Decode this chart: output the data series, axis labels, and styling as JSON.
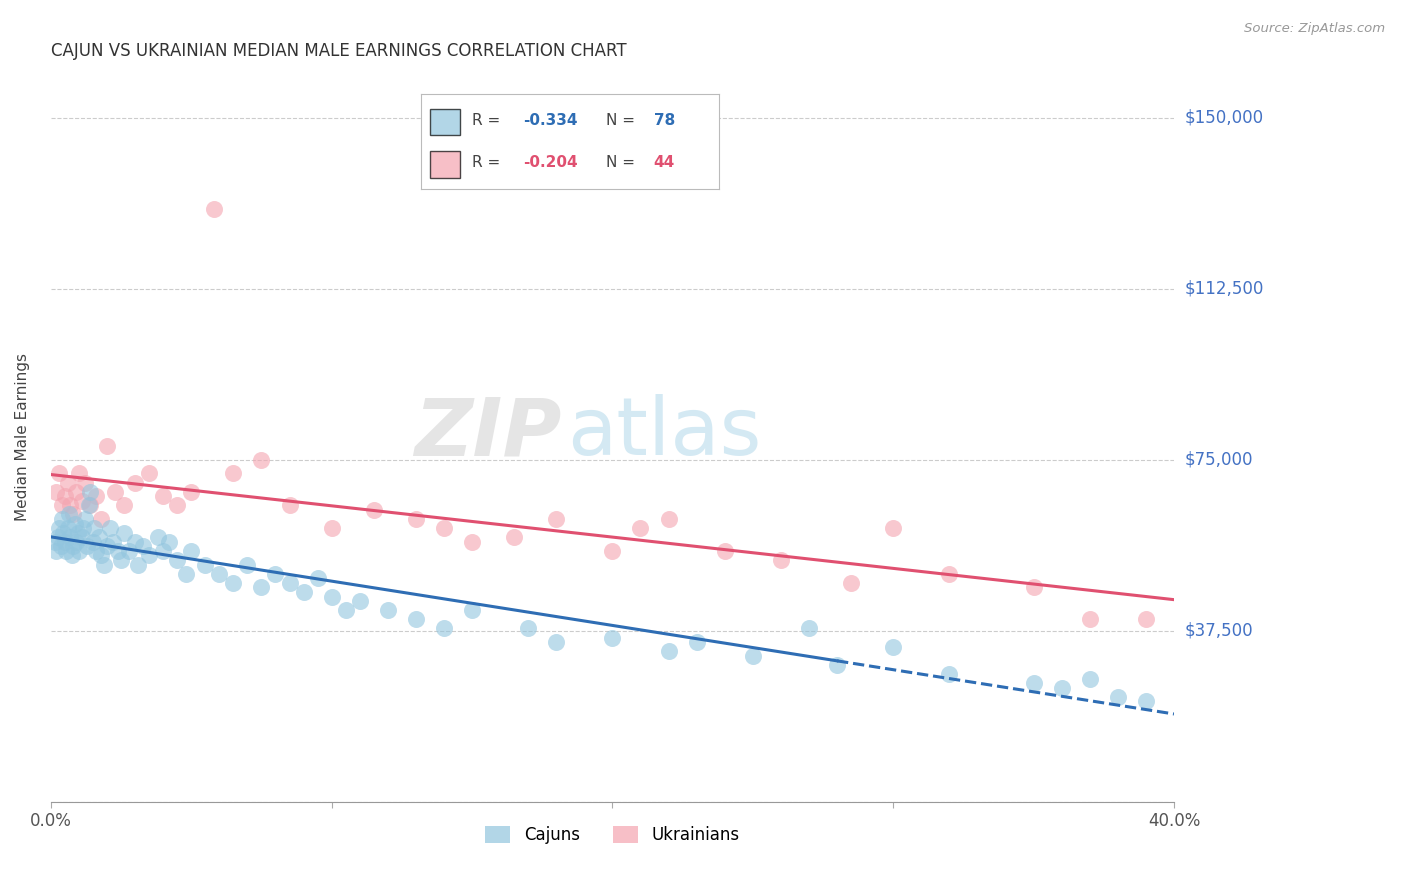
{
  "title": "CAJUN VS UKRAINIAN MEDIAN MALE EARNINGS CORRELATION CHART",
  "source": "Source: ZipAtlas.com",
  "ylabel": "Median Male Earnings",
  "yticks": [
    0,
    37500,
    75000,
    112500,
    150000
  ],
  "ytick_labels": [
    "",
    "$37,500",
    "$75,000",
    "$112,500",
    "$150,000"
  ],
  "xmin": 0.0,
  "xmax": 40.0,
  "ymin": 0,
  "ymax": 160000,
  "cajun_color": "#92C5DE",
  "ukrainian_color": "#F4A4B0",
  "cajun_R": -0.334,
  "cajun_N": 78,
  "ukrainian_R": -0.204,
  "ukrainian_N": 44,
  "line_color_cajun": "#2E6DB4",
  "line_color_ukrainian": "#E05070",
  "watermark_zip": "ZIP",
  "watermark_atlas": "atlas",
  "legend_R_label": "R = ",
  "legend_N_label": "N = ",
  "cajun_legend_R": "-0.334",
  "cajun_legend_N": "78",
  "ukr_legend_R": "-0.204",
  "ukr_legend_N": "44",
  "cajun_x": [
    0.15,
    0.2,
    0.25,
    0.3,
    0.35,
    0.4,
    0.45,
    0.5,
    0.55,
    0.6,
    0.65,
    0.7,
    0.75,
    0.8,
    0.85,
    0.9,
    0.95,
    1.0,
    1.1,
    1.15,
    1.2,
    1.3,
    1.35,
    1.4,
    1.5,
    1.55,
    1.6,
    1.7,
    1.8,
    1.9,
    2.0,
    2.1,
    2.2,
    2.4,
    2.5,
    2.6,
    2.8,
    3.0,
    3.1,
    3.3,
    3.5,
    3.8,
    4.0,
    4.2,
    4.5,
    4.8,
    5.0,
    5.5,
    6.0,
    6.5,
    7.0,
    7.5,
    8.0,
    8.5,
    9.0,
    9.5,
    10.0,
    10.5,
    11.0,
    12.0,
    13.0,
    14.0,
    15.0,
    17.0,
    18.0,
    20.0,
    22.0,
    23.0,
    25.0,
    27.0,
    28.0,
    30.0,
    32.0,
    35.0,
    36.0,
    37.0,
    38.0,
    39.0
  ],
  "cajun_y": [
    57000,
    55000,
    58000,
    60000,
    56000,
    62000,
    59000,
    57000,
    55000,
    60000,
    63000,
    58000,
    54000,
    56000,
    61000,
    57000,
    59000,
    55000,
    58000,
    60000,
    62000,
    56000,
    65000,
    68000,
    57000,
    60000,
    55000,
    58000,
    54000,
    52000,
    56000,
    60000,
    57000,
    55000,
    53000,
    59000,
    55000,
    57000,
    52000,
    56000,
    54000,
    58000,
    55000,
    57000,
    53000,
    50000,
    55000,
    52000,
    50000,
    48000,
    52000,
    47000,
    50000,
    48000,
    46000,
    49000,
    45000,
    42000,
    44000,
    42000,
    40000,
    38000,
    42000,
    38000,
    35000,
    36000,
    33000,
    35000,
    32000,
    38000,
    30000,
    34000,
    28000,
    26000,
    25000,
    27000,
    23000,
    22000
  ],
  "ukr_x": [
    0.2,
    0.3,
    0.4,
    0.5,
    0.6,
    0.7,
    0.8,
    0.9,
    1.0,
    1.1,
    1.2,
    1.4,
    1.6,
    1.8,
    2.0,
    2.3,
    2.6,
    3.0,
    3.5,
    4.0,
    4.5,
    5.0,
    5.8,
    6.5,
    7.5,
    8.5,
    10.0,
    11.5,
    13.0,
    14.0,
    15.0,
    16.5,
    18.0,
    20.0,
    21.0,
    22.0,
    24.0,
    26.0,
    28.5,
    30.0,
    32.0,
    35.0,
    37.0,
    39.0
  ],
  "ukr_y": [
    68000,
    72000,
    65000,
    67000,
    70000,
    65000,
    63000,
    68000,
    72000,
    66000,
    70000,
    65000,
    67000,
    62000,
    78000,
    68000,
    65000,
    70000,
    72000,
    67000,
    65000,
    68000,
    130000,
    72000,
    75000,
    65000,
    60000,
    64000,
    62000,
    60000,
    57000,
    58000,
    62000,
    55000,
    60000,
    62000,
    55000,
    53000,
    48000,
    60000,
    50000,
    47000,
    40000,
    40000
  ],
  "cajun_line_x0": 0.0,
  "cajun_line_x1": 28.0,
  "cajun_dash_x0": 28.0,
  "cajun_dash_x1": 40.0,
  "ukr_line_x0": 0.0,
  "ukr_line_x1": 40.0
}
